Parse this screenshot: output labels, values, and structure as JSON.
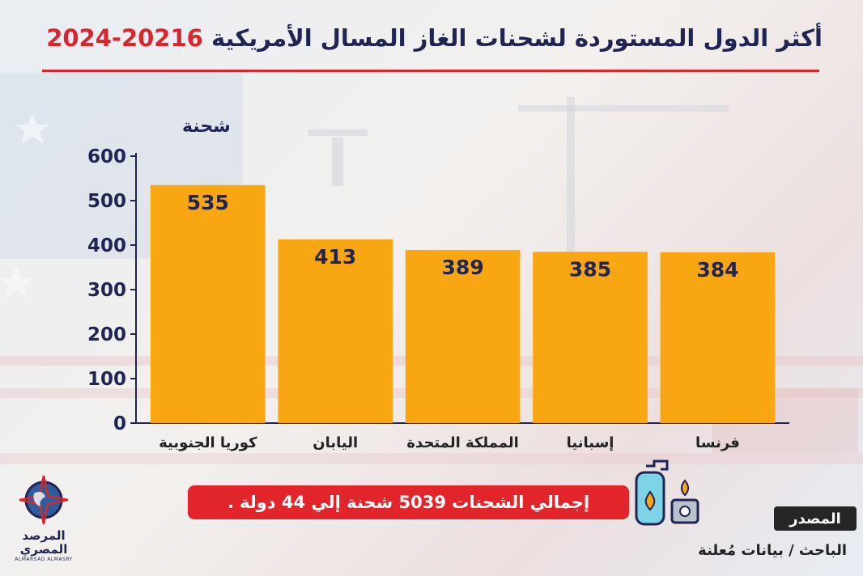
{
  "title": {
    "main": "أكثر الدول المستوردة لشحنات الغاز المسال الأمريكية",
    "years": "20216-2024"
  },
  "total_note": "إجمالي الشحنات 5039 شحنة إلي 44 دولة .",
  "source": {
    "label": "المصدر",
    "text": "الباحث / بيانات مُعلنة"
  },
  "logo": {
    "name_line1": "المرصد",
    "name_line2": "المصري",
    "latin": "ALMARSAD ALMASRY"
  },
  "colors": {
    "bar": "#f8a713",
    "value_text": "#1f2452",
    "axis": "#1f2452",
    "accent": "#d8262e"
  },
  "chart_data": {
    "type": "bar",
    "categories": [
      "كوريا الجنوبية",
      "اليابان",
      "المملكة المتحدة",
      "إسبانيا",
      "فرنسا"
    ],
    "values": [
      535,
      413,
      389,
      385,
      384
    ],
    "title": "",
    "xlabel": "",
    "ylabel": "شحنة",
    "ylim": [
      0,
      600
    ],
    "yticks": [
      0,
      100,
      200,
      300,
      400,
      500,
      600
    ],
    "data_labels": true,
    "grid": false,
    "legend": "none"
  }
}
